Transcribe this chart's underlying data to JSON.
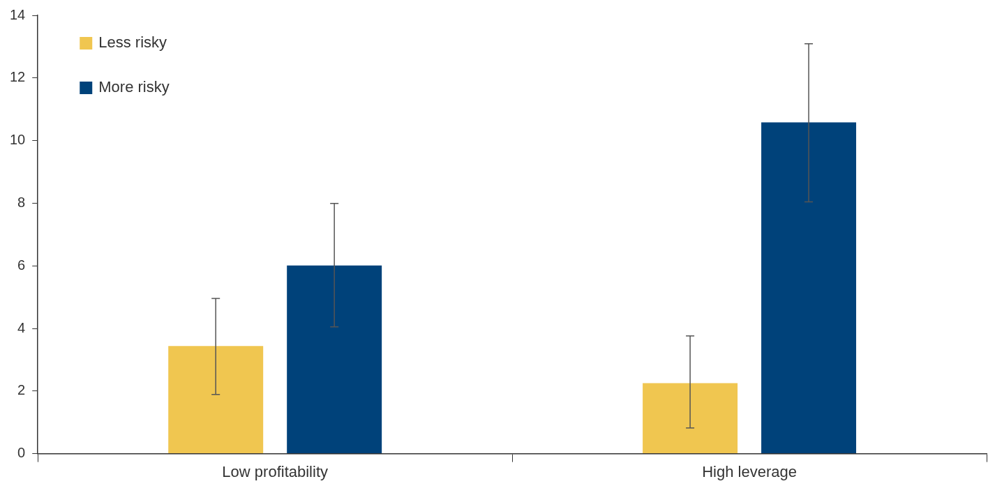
{
  "chart_data": {
    "type": "bar",
    "categories": [
      "Low profitability",
      "High leverage"
    ],
    "series": [
      {
        "name": "Less risky",
        "color": "#f0c650",
        "values": [
          3.44,
          2.25
        ],
        "errors": [
          [
            1.89,
            4.96
          ],
          [
            0.82,
            3.76
          ]
        ]
      },
      {
        "name": "More risky",
        "color": "#00427a",
        "values": [
          6.01,
          10.58
        ],
        "errors": [
          [
            4.05,
            7.99
          ],
          [
            8.04,
            13.09
          ]
        ]
      }
    ],
    "ylim": [
      0,
      14
    ],
    "yticks": [
      0,
      2,
      4,
      6,
      8,
      10,
      12,
      14
    ],
    "grid": false,
    "legend": "top left"
  }
}
